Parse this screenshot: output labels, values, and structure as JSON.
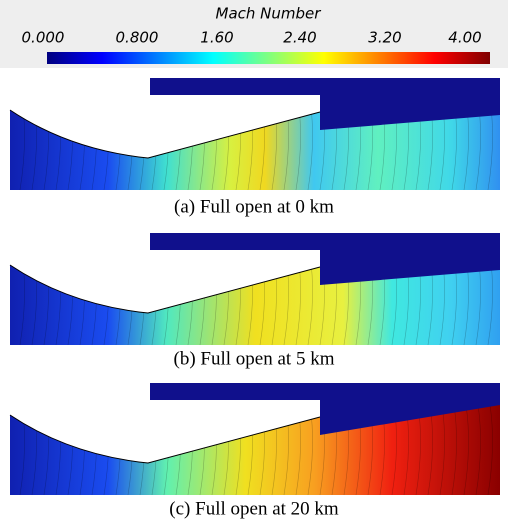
{
  "colorbar": {
    "title": "Mach Number",
    "ticks": [
      "0.000",
      "0.800",
      "1.60",
      "2.40",
      "3.20",
      "4.00"
    ]
  },
  "panels": [
    {
      "caption": "(a) Full open at 0 km"
    },
    {
      "caption": "(b) Full open at 5 km"
    },
    {
      "caption": "(c) Full open at 20 km"
    }
  ]
}
